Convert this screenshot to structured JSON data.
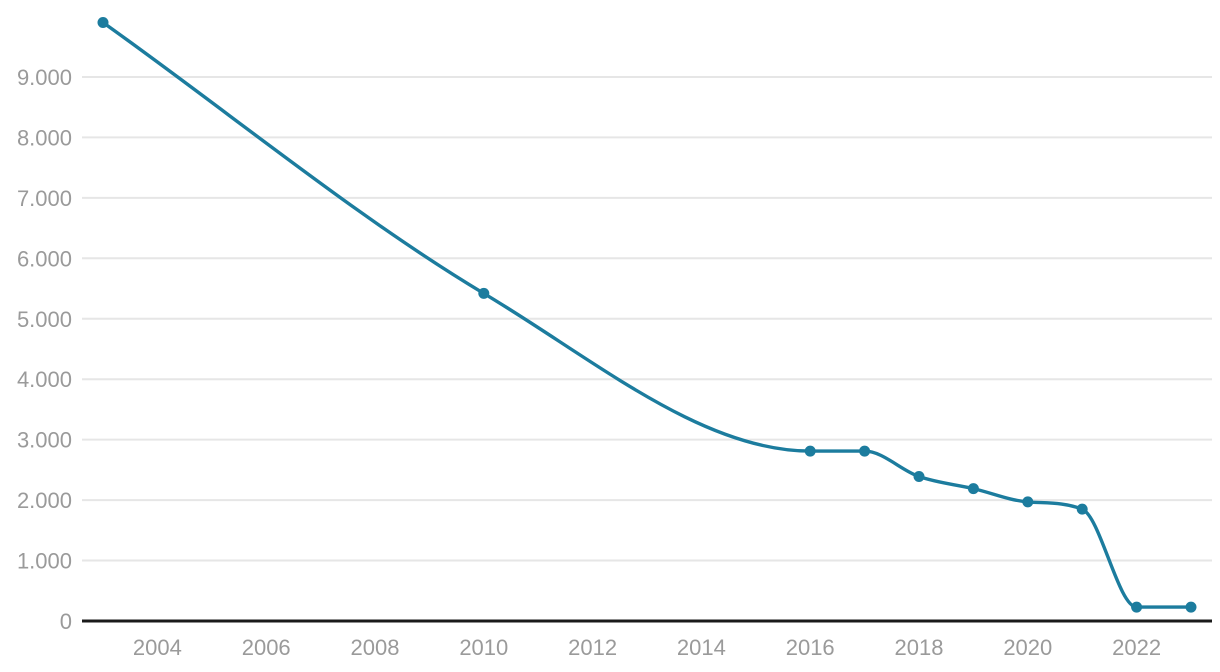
{
  "chart_data": {
    "type": "line",
    "title": "",
    "xlabel": "",
    "ylabel": "",
    "legend": "none",
    "grid": "horizontal-only",
    "curve": "monotone",
    "xlim": [
      2003,
      2023
    ],
    "ylim": [
      0,
      10000
    ],
    "series": [
      {
        "name": "series-1",
        "points": [
          {
            "x": 2003,
            "y": 9900
          },
          {
            "x": 2010,
            "y": 5420
          },
          {
            "x": 2016,
            "y": 2810
          },
          {
            "x": 2017,
            "y": 2810
          },
          {
            "x": 2018,
            "y": 2390
          },
          {
            "x": 2019,
            "y": 2190
          },
          {
            "x": 2020,
            "y": 1970
          },
          {
            "x": 2021,
            "y": 1850
          },
          {
            "x": 2022,
            "y": 230
          },
          {
            "x": 2023,
            "y": 230
          }
        ]
      }
    ],
    "x_ticks": [
      {
        "v": 2004,
        "label": "2004"
      },
      {
        "v": 2006,
        "label": "2006"
      },
      {
        "v": 2008,
        "label": "2008"
      },
      {
        "v": 2010,
        "label": "2010"
      },
      {
        "v": 2012,
        "label": "2012"
      },
      {
        "v": 2014,
        "label": "2014"
      },
      {
        "v": 2016,
        "label": "2016"
      },
      {
        "v": 2018,
        "label": "2018"
      },
      {
        "v": 2020,
        "label": "2020"
      },
      {
        "v": 2022,
        "label": "2022"
      }
    ],
    "y_ticks": [
      {
        "v": 0,
        "label": "0"
      },
      {
        "v": 1000,
        "label": "1.000"
      },
      {
        "v": 2000,
        "label": "2.000"
      },
      {
        "v": 3000,
        "label": "3.000"
      },
      {
        "v": 4000,
        "label": "4.000"
      },
      {
        "v": 5000,
        "label": "5.000"
      },
      {
        "v": 6000,
        "label": "6.000"
      },
      {
        "v": 7000,
        "label": "7.000"
      },
      {
        "v": 8000,
        "label": "8.000"
      },
      {
        "v": 9000,
        "label": "9.000"
      }
    ],
    "colors": {
      "line": "#1c7c9e",
      "marker": "#1c7c9e",
      "gridline": "#e6e6e6",
      "zero_baseline": "#1a1a1a",
      "tick_label": "#9a9a9a",
      "background": "#ffffff"
    }
  }
}
